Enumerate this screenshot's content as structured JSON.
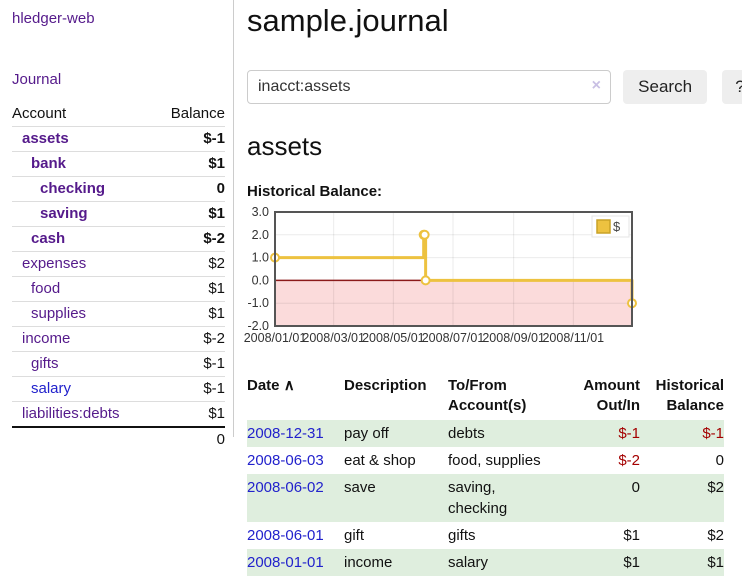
{
  "app": {
    "title": "hledger-web"
  },
  "colors": {
    "link_purple": "#551a8b",
    "link_blue": "#2222cc",
    "negative_strong": "#a40000",
    "negative_faded": "#bb6d6d",
    "row_stripe_green": "#dfeede"
  },
  "sidebar": {
    "journal_link": "Journal",
    "table": {
      "account_header": "Account",
      "balance_header": "Balance"
    },
    "accounts": [
      {
        "name": "assets",
        "level": 1,
        "balance": "$-1",
        "bold": true,
        "neg": "strong"
      },
      {
        "name": "bank",
        "level": 2,
        "balance": "$1",
        "bold": true,
        "neg": ""
      },
      {
        "name": "checking",
        "level": 3,
        "balance": "0",
        "bold": true,
        "neg": ""
      },
      {
        "name": "saving",
        "level": 3,
        "balance": "$1",
        "bold": true,
        "neg": ""
      },
      {
        "name": "cash",
        "level": 2,
        "balance": "$-2",
        "bold": true,
        "neg": "strong"
      },
      {
        "name": "expenses",
        "level": 1,
        "balance": "$2",
        "bold": false,
        "neg": ""
      },
      {
        "name": "food",
        "level": 2,
        "balance": "$1",
        "bold": false,
        "neg": ""
      },
      {
        "name": "supplies",
        "level": 2,
        "balance": "$1",
        "bold": false,
        "neg": ""
      },
      {
        "name": "income",
        "level": 1,
        "balance": "$-2",
        "bold": false,
        "neg": "faded"
      },
      {
        "name": "gifts",
        "level": 2,
        "balance": "$-1",
        "bold": false,
        "neg": "faded"
      },
      {
        "name": "salary",
        "level": 2,
        "balance": "$-1",
        "bold": false,
        "neg": "faded",
        "blue": true
      },
      {
        "name": "liabilities:debts",
        "level": 1,
        "balance": "$1",
        "bold": false,
        "neg": ""
      }
    ],
    "total": "0"
  },
  "header": {
    "title": "sample.journal"
  },
  "search": {
    "value": "inacct:assets",
    "clear_icon": "×",
    "button": "Search",
    "help_button": "?"
  },
  "account_page": {
    "title": "assets",
    "chart_label": "Historical Balance:"
  },
  "chart_data": {
    "type": "line",
    "step": true,
    "title": "Historical Balance",
    "xlim": [
      "2008-01-01",
      "2008-12-31"
    ],
    "ylim": [
      -2,
      3
    ],
    "x_ticks": [
      "2008/01/01",
      "2008/03/01",
      "2008/05/01",
      "2008/07/01",
      "2008/09/01",
      "2008/11/01"
    ],
    "y_ticks": [
      "3.0",
      "2.0",
      "1.0",
      "0.0",
      "-1.0",
      "-2.0"
    ],
    "grid": true,
    "legend_position": "top-right",
    "legend_label": "$",
    "series": [
      {
        "name": "$",
        "color": "#edc240",
        "marker_border": "#c9a227",
        "points": [
          [
            "2008-01-01",
            1
          ],
          [
            "2008-06-01",
            2
          ],
          [
            "2008-06-02",
            2
          ],
          [
            "2008-06-03",
            0
          ],
          [
            "2008-12-31",
            -1
          ]
        ]
      }
    ],
    "negative_region_color": "#fbdbdb",
    "zero_line_color": "#8b1a1a",
    "plot_border_color": "#555555"
  },
  "register_table": {
    "sort_icon": "∧",
    "headers": {
      "date": "Date",
      "description": "Description",
      "accounts": "To/From Account(s)",
      "amount": "Amount Out/In",
      "balance": "Historical Balance"
    },
    "rows": [
      {
        "date": "2008-12-31",
        "description": "pay off",
        "accounts": "debts",
        "amount": "$-1",
        "balance": "$-1"
      },
      {
        "date": "2008-06-03",
        "description": "eat & shop",
        "accounts": "food, supplies",
        "amount": "$-2",
        "balance": "0"
      },
      {
        "date": "2008-06-02",
        "description": "save",
        "accounts": "saving, checking",
        "amount": "0",
        "balance": "$2"
      },
      {
        "date": "2008-06-01",
        "description": "gift",
        "accounts": "gifts",
        "amount": "$1",
        "balance": "$2"
      },
      {
        "date": "2008-01-01",
        "description": "income",
        "accounts": "salary",
        "amount": "$1",
        "balance": "$1"
      }
    ]
  }
}
